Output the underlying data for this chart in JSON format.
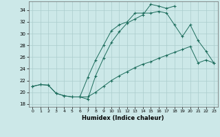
{
  "xlabel": "Humidex (Indice chaleur)",
  "bg_color": "#cce8e8",
  "line_color": "#1a6b5a",
  "grid_color": "#aacccc",
  "xlim": [
    -0.5,
    23.5
  ],
  "ylim": [
    17.5,
    35.5
  ],
  "xticks": [
    0,
    1,
    2,
    3,
    4,
    5,
    6,
    7,
    8,
    9,
    10,
    11,
    12,
    13,
    14,
    15,
    16,
    17,
    18,
    19,
    20,
    21,
    22,
    23
  ],
  "yticks": [
    18,
    20,
    22,
    24,
    26,
    28,
    30,
    32,
    34
  ],
  "line1_x": [
    0,
    1,
    2,
    3,
    4,
    5,
    6,
    7,
    8,
    9,
    10,
    11,
    12,
    13,
    14,
    15,
    16,
    17,
    18
  ],
  "line1_y": [
    21.0,
    21.3,
    21.2,
    19.8,
    19.4,
    19.2,
    19.2,
    18.8,
    22.8,
    25.8,
    28.5,
    30.3,
    31.8,
    32.5,
    33.2,
    35.0,
    34.7,
    34.3,
    34.7
  ],
  "line2_x": [
    0,
    1,
    2,
    3,
    4,
    5,
    6,
    7,
    8,
    9,
    10,
    11,
    12,
    13,
    14,
    15,
    16,
    17,
    18,
    19,
    20,
    21,
    22,
    23
  ],
  "line2_y": [
    21.0,
    21.3,
    21.2,
    19.8,
    19.4,
    19.2,
    19.2,
    19.2,
    20.0,
    21.0,
    22.0,
    22.8,
    23.5,
    24.2,
    24.8,
    25.2,
    25.8,
    26.3,
    26.8,
    27.3,
    27.8,
    25.0,
    25.5,
    25.0
  ],
  "line3_x": [
    6,
    7,
    8,
    9,
    10,
    11,
    12,
    13,
    14,
    15,
    16,
    17,
    18,
    19,
    20,
    21,
    22,
    23
  ],
  "line3_y": [
    19.2,
    22.5,
    25.5,
    28.0,
    30.5,
    31.5,
    32.0,
    33.5,
    33.5,
    33.5,
    33.8,
    33.5,
    31.5,
    29.5,
    31.5,
    28.8,
    27.0,
    25.0
  ]
}
